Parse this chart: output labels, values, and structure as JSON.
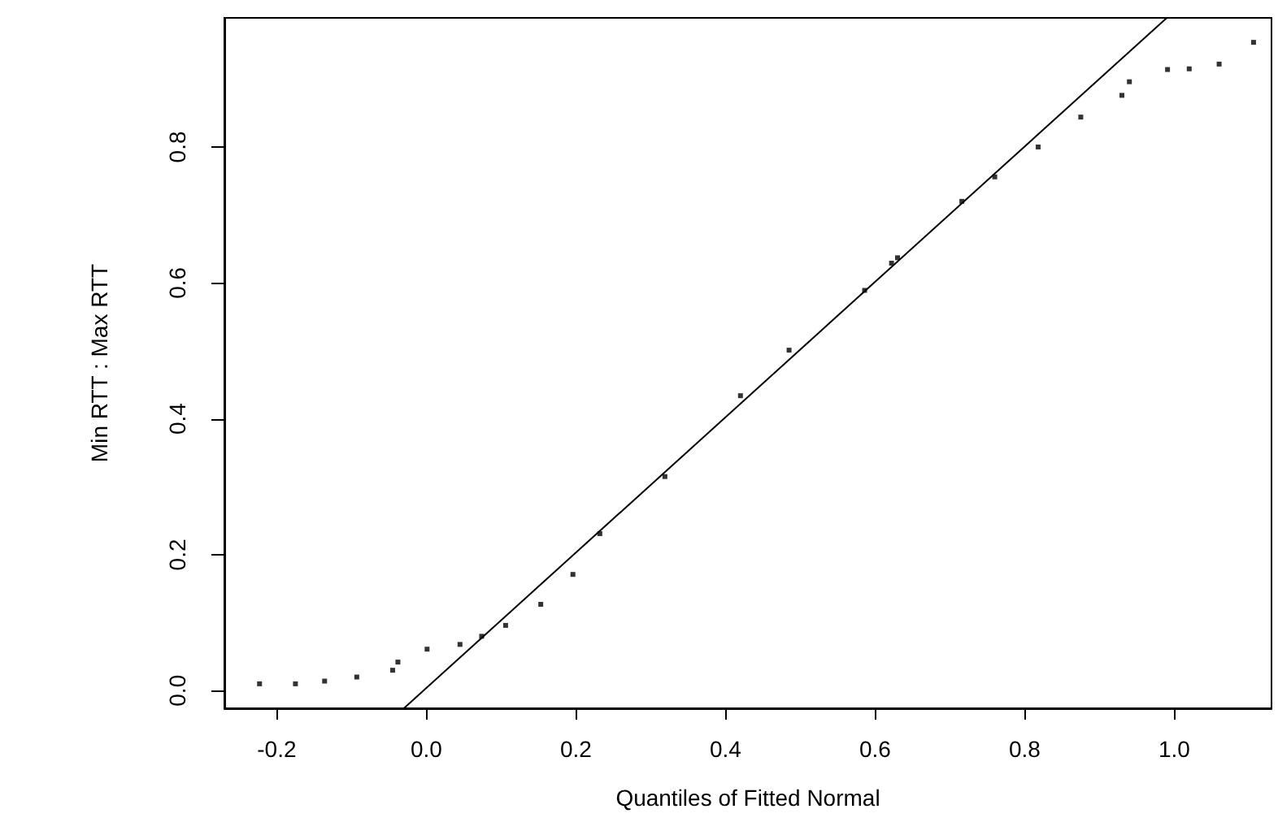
{
  "chart_data": {
    "type": "scatter",
    "xlabel": "Quantiles of Fitted Normal",
    "ylabel": "Min RTT : Max RTT",
    "marker": "square",
    "xlim": [
      -0.27,
      1.13
    ],
    "ylim": [
      -0.026,
      0.99
    ],
    "xticks": [
      -0.2,
      {
        "value": 0,
        "label": "0.0"
      },
      0.2,
      0.4,
      0.6,
      0.8,
      {
        "value": 1,
        "label": "1.0"
      }
    ],
    "yticks": [
      {
        "value": 0,
        "label": "0.0"
      },
      0.2,
      0.4,
      0.6,
      0.8
    ],
    "series": [
      {
        "color": "#000000",
        "x": [
          -0.223,
          -0.175,
          -0.136,
          -0.093,
          -0.045,
          -0.038,
          0.001,
          0.045,
          0.074,
          0.106,
          0.153,
          0.196,
          0.232,
          0.319,
          0.42,
          0.485,
          0.586,
          0.622,
          0.63,
          0.716,
          0.76,
          0.818,
          0.875,
          0.93,
          0.94,
          0.991,
          1.02,
          1.06,
          1.106
        ],
        "values": [
          0.01,
          0.01,
          0.014,
          0.02,
          0.03,
          0.042,
          0.061,
          0.068,
          0.08,
          0.096,
          0.127,
          0.171,
          0.231,
          0.315,
          0.434,
          0.501,
          0.589,
          0.629,
          0.637,
          0.72,
          0.756,
          0.8,
          0.844,
          0.876,
          0.896,
          0.914,
          0.915,
          0.922,
          0.954
        ]
      },
      {
        "type": "line",
        "color": "#000000",
        "marker": "none",
        "x": [
          -0.03,
          0.99
        ],
        "values": [
          -0.026,
          0.99
        ]
      }
    ]
  }
}
